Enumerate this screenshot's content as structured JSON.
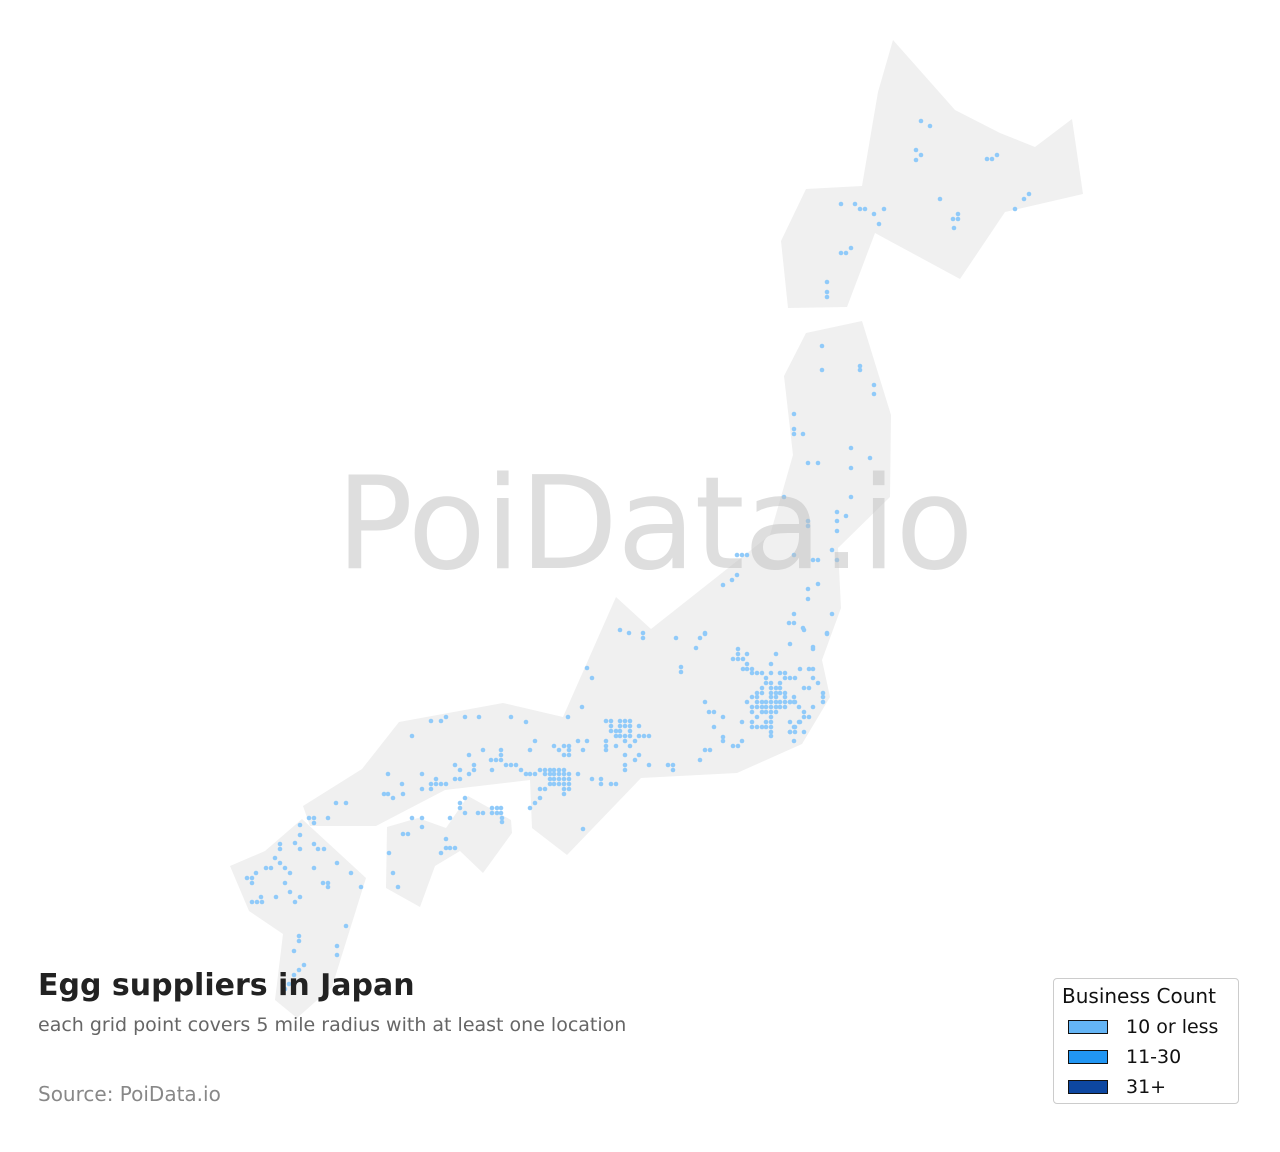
{
  "title": "Egg suppliers in Japan",
  "subtitle": "each grid point covers 5 mile radius with at least one location",
  "source": "Source: PoiData.io",
  "watermark": "PoiData.io",
  "map": {
    "region": "Japan",
    "land_color": "#f0f0f0",
    "point_color": "#90caf9",
    "grid_radius_miles": 5
  },
  "legend": {
    "title": "Business Count",
    "items": [
      {
        "label": "10 or less",
        "color": "#64b5f6"
      },
      {
        "label": "11-30",
        "color": "#2196f3"
      },
      {
        "label": "31+",
        "color": "#0d47a1"
      }
    ]
  }
}
